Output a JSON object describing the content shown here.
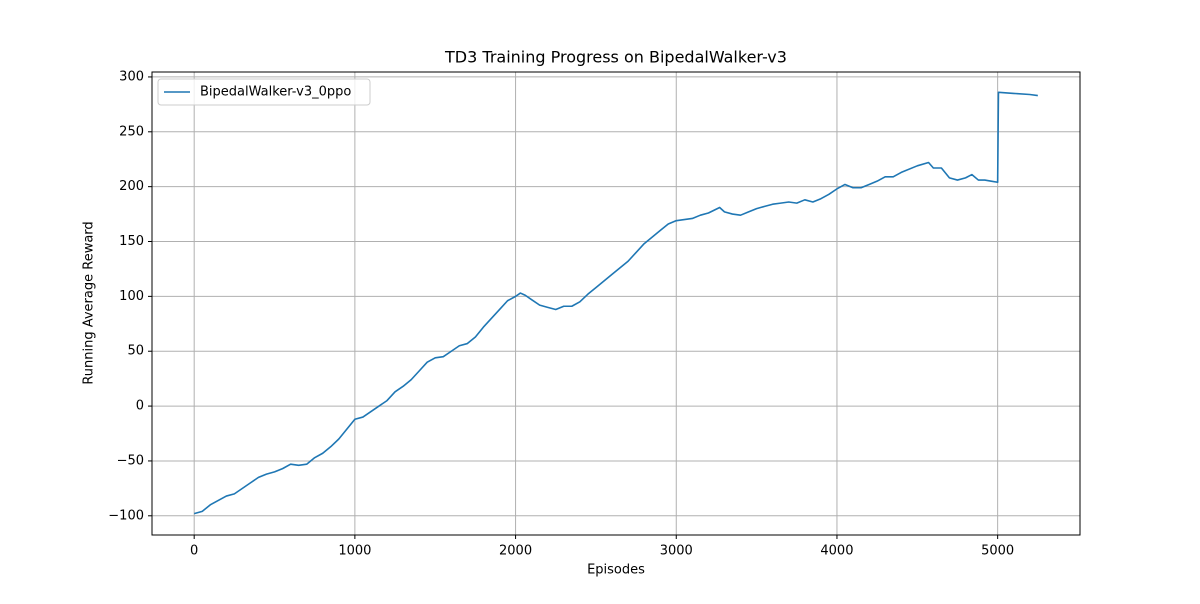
{
  "chart_data": {
    "type": "line",
    "title": "TD3 Training Progress on BipedalWalker-v3",
    "x_label": "Episodes",
    "y_label": "Running Average Reward",
    "x": [
      0,
      50,
      100,
      150,
      200,
      250,
      300,
      350,
      400,
      450,
      500,
      550,
      600,
      650,
      700,
      750,
      800,
      850,
      900,
      950,
      1000,
      1050,
      1100,
      1150,
      1200,
      1250,
      1300,
      1350,
      1400,
      1450,
      1500,
      1550,
      1600,
      1650,
      1700,
      1750,
      1800,
      1850,
      1900,
      1950,
      2000,
      2030,
      2060,
      2100,
      2150,
      2200,
      2250,
      2300,
      2350,
      2400,
      2450,
      2500,
      2600,
      2700,
      2800,
      2900,
      2950,
      3000,
      3050,
      3100,
      3150,
      3200,
      3270,
      3300,
      3350,
      3400,
      3450,
      3500,
      3550,
      3600,
      3650,
      3700,
      3750,
      3800,
      3850,
      3900,
      3950,
      4000,
      4050,
      4100,
      4150,
      4200,
      4250,
      4300,
      4350,
      4400,
      4500,
      4570,
      4600,
      4650,
      4700,
      4750,
      4800,
      4840,
      4880,
      4920,
      4960,
      5000,
      5005,
      5100,
      5200,
      5250
    ],
    "series": [
      {
        "name": "BipedalWalker-v3_0ppo",
        "color": "#1f77b4",
        "values": [
          -98,
          -96,
          -90,
          -86,
          -82,
          -80,
          -75,
          -70,
          -65,
          -62,
          -60,
          -57,
          -53,
          -54,
          -53,
          -47,
          -43,
          -37,
          -30,
          -21,
          -12,
          -10,
          -5,
          0,
          5,
          13,
          18,
          24,
          32,
          40,
          44,
          45,
          50,
          55,
          57,
          63,
          72,
          80,
          88,
          96,
          100,
          103,
          101,
          97,
          92,
          90,
          88,
          91,
          91,
          95,
          102,
          108,
          120,
          132,
          148,
          160,
          166,
          169,
          170,
          171,
          174,
          176,
          181,
          177,
          175,
          174,
          177,
          180,
          182,
          184,
          185,
          186,
          185,
          188,
          186,
          189,
          193,
          198,
          202,
          199,
          199,
          202,
          205,
          209,
          209,
          213,
          219,
          222,
          217,
          217,
          208,
          206,
          208,
          211,
          206,
          206,
          205,
          204,
          286,
          285,
          284,
          283
        ]
      }
    ],
    "xlim": [
      -262.5,
      5512.5
    ],
    "ylim": [
      -117.5,
      304.5
    ],
    "xticks": [
      0,
      1000,
      2000,
      3000,
      4000,
      5000
    ],
    "yticks": [
      {
        "value": -100,
        "label": "−100"
      },
      {
        "value": -50,
        "label": "−50"
      },
      0,
      50,
      100,
      150,
      200,
      250,
      300
    ],
    "grid": true,
    "legend": "upper-left"
  }
}
